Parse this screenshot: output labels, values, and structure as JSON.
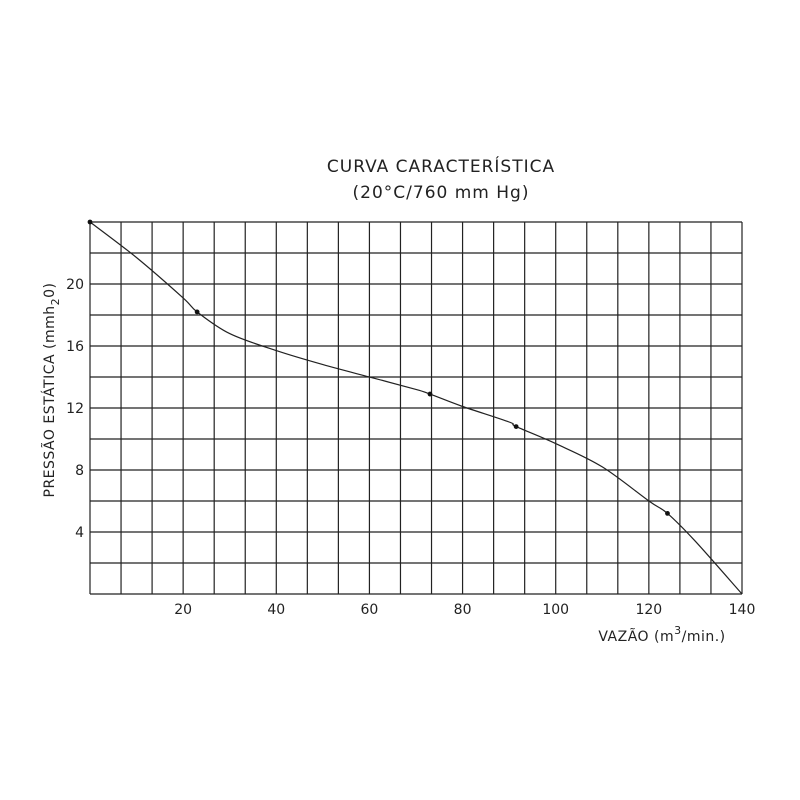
{
  "chart_data": {
    "type": "line",
    "title": "CURVA CARACTERÍSTICA",
    "subtitle": "(20°C/760 mm Hg)",
    "xlabel": {
      "prefix": "VAZÃO (m",
      "sup": "3",
      "suffix": "/min.)"
    },
    "ylabel": {
      "prefix": "PRESSÃO ESTÁTICA (mmh",
      "sub": "2",
      "suffix": "0)"
    },
    "xlim": [
      0,
      140
    ],
    "ylim": [
      0,
      24
    ],
    "x_ticks": [
      20,
      40,
      60,
      80,
      100,
      120,
      140
    ],
    "y_ticks": [
      4,
      8,
      12,
      16,
      20
    ],
    "grid": true,
    "grid_x_step": 6.67,
    "grid_y_step": 2,
    "series": [
      {
        "x": [
          0,
          10,
          20,
          23,
          30,
          40,
          50,
          60,
          70,
          73,
          80,
          90,
          91.5,
          100,
          110,
          120,
          124,
          130,
          140
        ],
        "y": [
          24,
          21.7,
          19.1,
          18.2,
          16.8,
          15.7,
          14.8,
          14.0,
          13.2,
          12.9,
          12.1,
          11.1,
          10.8,
          9.7,
          8.2,
          6.0,
          5.2,
          3.4,
          0
        ]
      }
    ],
    "markers": {
      "x": [
        0,
        23,
        73,
        91.5,
        124
      ],
      "y": [
        24,
        18.2,
        12.9,
        10.8,
        5.2
      ]
    }
  }
}
